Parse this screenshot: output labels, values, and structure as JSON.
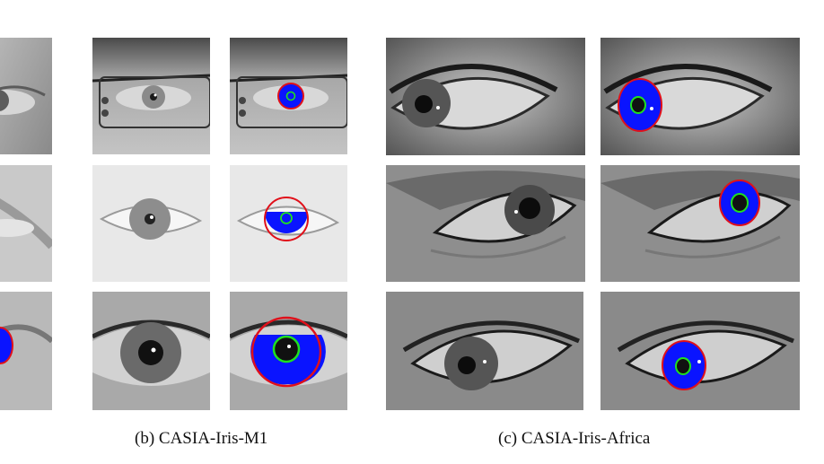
{
  "figure": {
    "captions": [
      {
        "id": "b",
        "text": "(b) CASIA-Iris-M1"
      },
      {
        "id": "c",
        "text": "(c) CASIA-Iris-Africa"
      }
    ],
    "panels": [
      {
        "group": "a",
        "row": 1,
        "kind": "original",
        "tone": "mid"
      },
      {
        "group": "a",
        "row": 2,
        "kind": "original",
        "tone": "light"
      },
      {
        "group": "a",
        "row": 3,
        "kind": "segmented",
        "tone": "light"
      },
      {
        "group": "b",
        "row": 1,
        "kind": "original",
        "glasses": true
      },
      {
        "group": "b",
        "row": 1,
        "kind": "segmented",
        "glasses": true
      },
      {
        "group": "b",
        "row": 2,
        "kind": "original"
      },
      {
        "group": "b",
        "row": 2,
        "kind": "segmented"
      },
      {
        "group": "b",
        "row": 3,
        "kind": "original"
      },
      {
        "group": "b",
        "row": 3,
        "kind": "segmented"
      },
      {
        "group": "c",
        "row": 1,
        "kind": "original"
      },
      {
        "group": "c",
        "row": 1,
        "kind": "segmented"
      },
      {
        "group": "c",
        "row": 2,
        "kind": "original"
      },
      {
        "group": "c",
        "row": 2,
        "kind": "segmented"
      },
      {
        "group": "c",
        "row": 3,
        "kind": "original"
      },
      {
        "group": "c",
        "row": 3,
        "kind": "segmented"
      }
    ],
    "overlay_colors": {
      "iris_fill": "#0a14ff",
      "outer_boundary": "#e0101a",
      "pupil_boundary": "#1fe01f"
    }
  }
}
